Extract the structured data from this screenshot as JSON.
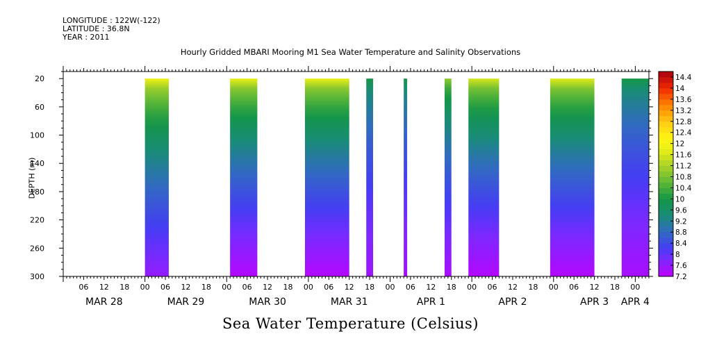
{
  "header": {
    "longitude": "LONGITUDE : 122W(-122)",
    "latitude": "LATITUDE : 36.8N",
    "year": "YEAR : 2011"
  },
  "chart_data": {
    "type": "heatmap",
    "title": "Hourly Gridded MBARI Mooring M1 Sea Water Temperature and Salinity Observations",
    "ylabel": "DEPTH (m)",
    "xlabel": "Sea Water Temperature (Celsius)",
    "y_ticks": [
      20,
      60,
      100,
      140,
      180,
      220,
      260,
      300
    ],
    "ylim": [
      300,
      10
    ],
    "x_hour_ticks": [
      {
        "t": 6,
        "label": "06"
      },
      {
        "t": 12,
        "label": "12"
      },
      {
        "t": 18,
        "label": "18"
      },
      {
        "t": 24,
        "label": "00"
      },
      {
        "t": 30,
        "label": "06"
      },
      {
        "t": 36,
        "label": "12"
      },
      {
        "t": 42,
        "label": "18"
      },
      {
        "t": 48,
        "label": "00"
      },
      {
        "t": 54,
        "label": "06"
      },
      {
        "t": 60,
        "label": "12"
      },
      {
        "t": 66,
        "label": "18"
      },
      {
        "t": 72,
        "label": "00"
      },
      {
        "t": 78,
        "label": "06"
      },
      {
        "t": 84,
        "label": "12"
      },
      {
        "t": 90,
        "label": "18"
      },
      {
        "t": 96,
        "label": "00"
      },
      {
        "t": 102,
        "label": "06"
      },
      {
        "t": 108,
        "label": "12"
      },
      {
        "t": 114,
        "label": "18"
      },
      {
        "t": 120,
        "label": "00"
      },
      {
        "t": 126,
        "label": "06"
      },
      {
        "t": 132,
        "label": "12"
      },
      {
        "t": 138,
        "label": "18"
      },
      {
        "t": 144,
        "label": "00"
      },
      {
        "t": 150,
        "label": "06"
      },
      {
        "t": 156,
        "label": "12"
      },
      {
        "t": 162,
        "label": "18"
      },
      {
        "t": 168,
        "label": "00"
      }
    ],
    "day_labels": [
      {
        "t": 12,
        "label": "MAR 28"
      },
      {
        "t": 36,
        "label": "MAR 29"
      },
      {
        "t": 60,
        "label": "MAR 30"
      },
      {
        "t": 84,
        "label": "MAR 31"
      },
      {
        "t": 108,
        "label": "APR  1"
      },
      {
        "t": 132,
        "label": "APR  2"
      },
      {
        "t": 156,
        "label": "APR  3"
      },
      {
        "t": 168,
        "label": "APR  4"
      }
    ],
    "xlim": [
      0,
      172
    ],
    "data_segments": [
      {
        "start": 24,
        "end": 31,
        "top_temp": 11.9,
        "bottom_temp": 7.6
      },
      {
        "start": 49,
        "end": 57,
        "top_temp": 11.8,
        "bottom_temp": 7.3
      },
      {
        "start": 71,
        "end": 84,
        "top_temp": 11.8,
        "bottom_temp": 7.3
      },
      {
        "start": 89,
        "end": 91,
        "top_temp": 10.0,
        "bottom_temp": 7.5
      },
      {
        "start": 100,
        "end": 101,
        "top_temp": 10.0,
        "bottom_temp": 7.4
      },
      {
        "start": 112,
        "end": 114,
        "top_temp": 11.0,
        "bottom_temp": 7.4
      },
      {
        "start": 119,
        "end": 128,
        "top_temp": 11.6,
        "bottom_temp": 7.3
      },
      {
        "start": 143,
        "end": 156,
        "top_temp": 11.7,
        "bottom_temp": 7.3
      },
      {
        "start": 164,
        "end": 172,
        "top_temp": 10.0,
        "bottom_temp": 7.4
      }
    ],
    "colorbar": {
      "labels": [
        "14.4",
        "14",
        "13.6",
        "13.2",
        "12.8",
        "12.4",
        "12",
        "11.6",
        "11.2",
        "10.8",
        "10.4",
        "10",
        "9.6",
        "9.2",
        "8.8",
        "8.4",
        "8",
        "7.6",
        "7.2"
      ],
      "min": 7.2,
      "max": 14.6,
      "levels": 37
    }
  }
}
